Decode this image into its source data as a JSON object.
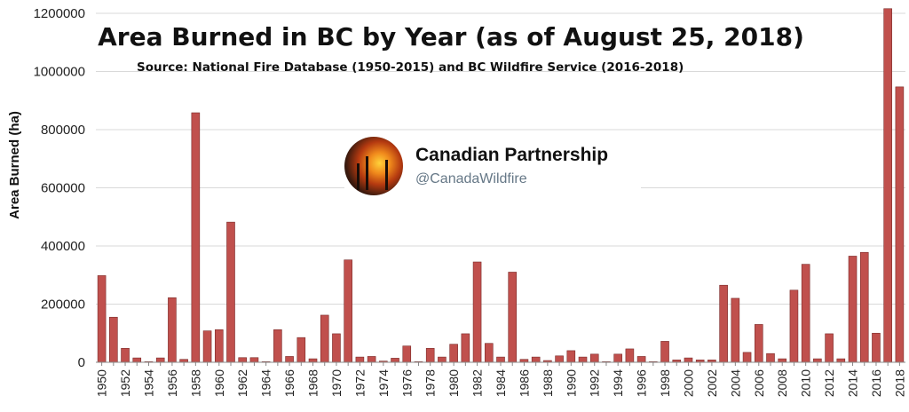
{
  "chart_data": {
    "type": "bar",
    "title": "Area Burned in BC by Year (as of August 25, 2018)",
    "subtitle": "Source: National Fire Database (1950-2015) and BC Wildfire Service (2016-2018)",
    "ylabel": "Area Burned (ha)",
    "xlabel": "",
    "ylim": [
      0,
      1200000
    ],
    "yticks": [
      0,
      200000,
      400000,
      600000,
      800000,
      1000000,
      1200000
    ],
    "grid": true,
    "bar_color": "#c0504d",
    "categories": [
      "1950",
      "1951",
      "1952",
      "1953",
      "1954",
      "1955",
      "1956",
      "1957",
      "1958",
      "1959",
      "1960",
      "1961",
      "1962",
      "1963",
      "1964",
      "1965",
      "1966",
      "1967",
      "1968",
      "1969",
      "1970",
      "1971",
      "1972",
      "1973",
      "1974",
      "1975",
      "1976",
      "1977",
      "1978",
      "1979",
      "1980",
      "1981",
      "1982",
      "1983",
      "1984",
      "1985",
      "1986",
      "1987",
      "1988",
      "1989",
      "1990",
      "1991",
      "1992",
      "1993",
      "1994",
      "1995",
      "1996",
      "1997",
      "1998",
      "1999",
      "2000",
      "2001",
      "2002",
      "2003",
      "2004",
      "2005",
      "2006",
      "2007",
      "2008",
      "2009",
      "2010",
      "2011",
      "2012",
      "2013",
      "2014",
      "2015",
      "2016",
      "2017",
      "2018"
    ],
    "values": [
      298000,
      155000,
      48000,
      15000,
      2000,
      15000,
      222000,
      10000,
      858000,
      108000,
      112000,
      482000,
      16000,
      16000,
      2000,
      112000,
      20000,
      85000,
      12000,
      162000,
      98000,
      352000,
      18000,
      20000,
      4000,
      14000,
      56000,
      2000,
      48000,
      18000,
      62000,
      98000,
      345000,
      65000,
      18000,
      310000,
      10000,
      18000,
      6000,
      22000,
      40000,
      18000,
      28000,
      2000,
      28000,
      46000,
      20000,
      2000,
      72000,
      8000,
      15000,
      8000,
      8000,
      265000,
      220000,
      34000,
      130000,
      30000,
      12000,
      248000,
      337000,
      12000,
      98000,
      12000,
      365000,
      378000,
      100000,
      1216000,
      947000
    ]
  },
  "watermark": {
    "name": "Canadian Partnership",
    "handle": "@CanadaWildfire",
    "avatar_icon": "wildfire-avatar-icon"
  }
}
